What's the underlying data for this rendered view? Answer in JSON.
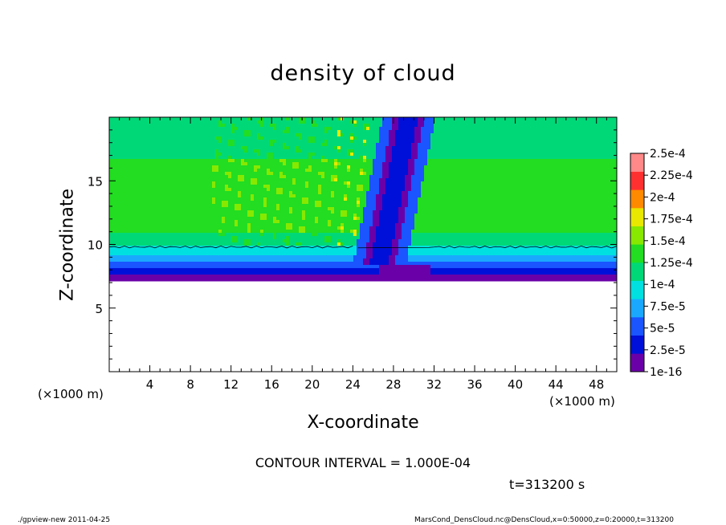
{
  "chart_data": {
    "type": "heatmap",
    "title": "density of cloud",
    "xlabel": "X-coordinate",
    "ylabel": "Z-coordinate",
    "x_unit": "(×1000 m)",
    "x_unit_right": "(×1000 m)",
    "xlim": [
      0,
      50
    ],
    "ylim": [
      0,
      20
    ],
    "x_ticks": [
      4,
      8,
      12,
      16,
      20,
      24,
      28,
      32,
      36,
      40,
      44,
      48
    ],
    "y_ticks": [
      5,
      10,
      15
    ],
    "colorbar": {
      "levels": [
        "1e-16",
        "2.5e-5",
        "5e-5",
        "7.5e-5",
        "1e-4",
        "1.25e-4",
        "1.5e-4",
        "1.75e-4",
        "2e-4",
        "2.25e-4",
        "2.5e-4"
      ],
      "colors": [
        "#6a00a8",
        "#0010d8",
        "#1a55ff",
        "#1aa8ff",
        "#00e0e0",
        "#00d878",
        "#22dd22",
        "#88e800",
        "#e8e800",
        "#ff8a00",
        "#ff3030",
        "#ff8888"
      ]
    },
    "contour_interval": "CONTOUR INTERVAL = 1.000E-04",
    "time_label": "t=313200 s",
    "profile": {
      "cloud_base_z": 7.2,
      "contour_1e4_z": 9.8,
      "plume_center_x": 28,
      "plume_width": 2.6
    }
  },
  "footer": {
    "left": "./gpview-new   2011-04-25",
    "right": "MarsCond_DensCloud.nc@DensCloud,x=0:50000,z=0:20000,t=313200"
  },
  "colors": {
    "background": "#ffffff",
    "axis": "#000000"
  }
}
